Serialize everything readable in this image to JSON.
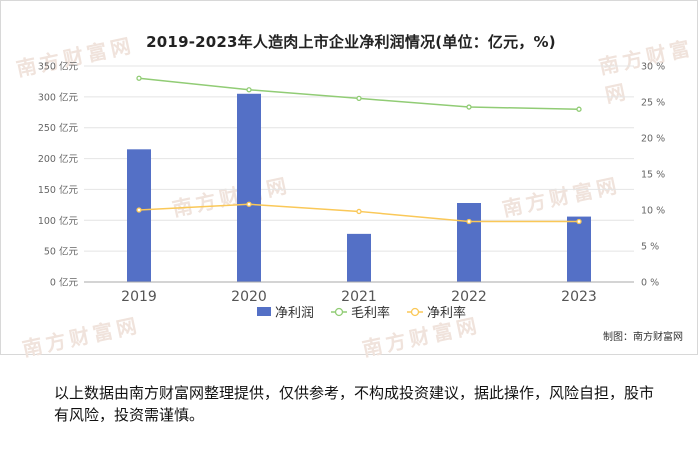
{
  "title": "2019-2023年人造肉上市企业净利润情况(单位：亿元，%)",
  "credit": "制图：南方财富网",
  "disclaimer": "以上数据由南方财富网整理提供，仅供参考，不构成投资建议，据此操作，风险自担，股市有风险，投资需谨慎。",
  "watermark": "南方财富网",
  "colors": {
    "bar": "#5470c6",
    "gross_margin": "#91cc75",
    "net_margin": "#fac858",
    "grid": "#e4e4e4",
    "axis_text": "#666666"
  },
  "chart_data": {
    "type": "bar",
    "categories": [
      "2019",
      "2020",
      "2021",
      "2022",
      "2023"
    ],
    "y_left": {
      "min": 0,
      "max": 350,
      "step": 50,
      "ticks": [
        "0 亿元",
        "50 亿元",
        "100 亿元",
        "150 亿元",
        "200 亿元",
        "250 亿元",
        "300 亿元",
        "350 亿元"
      ]
    },
    "y_right": {
      "min": 0,
      "max": 30,
      "step": 5,
      "ticks": [
        "0 %",
        "5 %",
        "10 %",
        "15 %",
        "20 %",
        "25 %",
        "30 %"
      ]
    },
    "series": [
      {
        "name": "净利润",
        "type": "bar",
        "axis": "left",
        "values": [
          215,
          305,
          78,
          128,
          106
        ]
      },
      {
        "name": "毛利率",
        "type": "line",
        "axis": "right",
        "values": [
          28.3,
          26.7,
          25.5,
          24.3,
          24.0
        ]
      },
      {
        "name": "净利率",
        "type": "line",
        "axis": "right",
        "values": [
          10.0,
          10.8,
          9.8,
          8.4,
          8.4
        ]
      }
    ],
    "legend_position": "bottom",
    "grid": true
  }
}
